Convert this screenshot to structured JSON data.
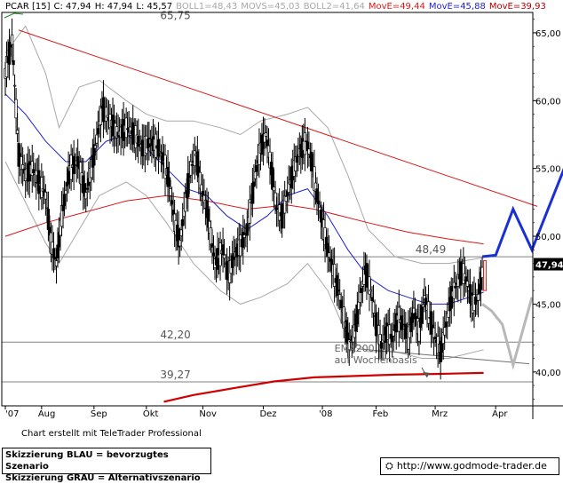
{
  "header": {
    "symbol": "PCAR [15]",
    "close": "C: 47,94",
    "high": "H: 47,94",
    "low": "L: 45,57",
    "boll1": "BOLL1=48,43",
    "movs": "MOVS=45,03",
    "boll2": "BOLL2=41,64",
    "move_red": "MovE=49,44",
    "move_blue": "MovE=45,88",
    "move_darkred": "MovE=39,93"
  },
  "colors": {
    "price": "#000000",
    "bollinger": "#a8a8a8",
    "ema_blue": "#1f1fd0",
    "ema_red": "#d81818",
    "ema200_weekly": "#d00000",
    "trendline": "#d81818",
    "scenario_blue": "#1a2fd6",
    "scenario_gray": "#b8b8b8",
    "level_line": "#808080"
  },
  "chart_data": {
    "type": "candlestick",
    "ylim": [
      37.5,
      66.5
    ],
    "y_ticks": [
      "65,00",
      "60,00",
      "55,00",
      "50,00",
      "45,00",
      "40,00"
    ],
    "y_tick_values": [
      65,
      60,
      55,
      50,
      45,
      40
    ],
    "current_price_label": "47,94",
    "current_price": 47.94,
    "x_labels": [
      "'07",
      "Aug",
      "Sep",
      "Okt",
      "Nov",
      "Dez",
      "'08",
      "Feb",
      "Mrz",
      "Apr"
    ],
    "x_label_positions": [
      0,
      27,
      66,
      105,
      147,
      192,
      236,
      276,
      320,
      365
    ],
    "x_range": [
      0,
      400
    ],
    "close": [
      {
        "t": 0,
        "v": 62.0
      },
      {
        "t": 5,
        "v": 64.5
      },
      {
        "t": 10,
        "v": 56.0
      },
      {
        "t": 15,
        "v": 54.5
      },
      {
        "t": 20,
        "v": 55.0
      },
      {
        "t": 25,
        "v": 54.0
      },
      {
        "t": 30,
        "v": 53.0
      },
      {
        "t": 34,
        "v": 49.5
      },
      {
        "t": 38,
        "v": 48.0
      },
      {
        "t": 42,
        "v": 51.5
      },
      {
        "t": 48,
        "v": 55.0
      },
      {
        "t": 54,
        "v": 55.5
      },
      {
        "t": 60,
        "v": 53.0
      },
      {
        "t": 66,
        "v": 56.0
      },
      {
        "t": 72,
        "v": 59.5
      },
      {
        "t": 78,
        "v": 58.5
      },
      {
        "t": 84,
        "v": 57.5
      },
      {
        "t": 90,
        "v": 58.0
      },
      {
        "t": 96,
        "v": 57.5
      },
      {
        "t": 102,
        "v": 56.5
      },
      {
        "t": 108,
        "v": 57.0
      },
      {
        "t": 114,
        "v": 56.5
      },
      {
        "t": 118,
        "v": 55.5
      },
      {
        "t": 122,
        "v": 54.0
      },
      {
        "t": 126,
        "v": 51.0
      },
      {
        "t": 130,
        "v": 49.5
      },
      {
        "t": 134,
        "v": 52.5
      },
      {
        "t": 138,
        "v": 55.0
      },
      {
        "t": 142,
        "v": 56.0
      },
      {
        "t": 146,
        "v": 53.5
      },
      {
        "t": 150,
        "v": 52.0
      },
      {
        "t": 156,
        "v": 48.0
      },
      {
        "t": 162,
        "v": 49.0
      },
      {
        "t": 166,
        "v": 47.0
      },
      {
        "t": 170,
        "v": 48.5
      },
      {
        "t": 176,
        "v": 49.5
      },
      {
        "t": 180,
        "v": 50.5
      },
      {
        "t": 186,
        "v": 54.5
      },
      {
        "t": 190,
        "v": 56.5
      },
      {
        "t": 194,
        "v": 57.5
      },
      {
        "t": 198,
        "v": 55.0
      },
      {
        "t": 202,
        "v": 52.0
      },
      {
        "t": 206,
        "v": 51.5
      },
      {
        "t": 212,
        "v": 54.0
      },
      {
        "t": 218,
        "v": 56.0
      },
      {
        "t": 224,
        "v": 57.0
      },
      {
        "t": 228,
        "v": 55.5
      },
      {
        "t": 232,
        "v": 53.0
      },
      {
        "t": 236,
        "v": 51.0
      },
      {
        "t": 240,
        "v": 49.0
      },
      {
        "t": 244,
        "v": 47.5
      },
      {
        "t": 248,
        "v": 46.0
      },
      {
        "t": 252,
        "v": 44.0
      },
      {
        "t": 256,
        "v": 42.0
      },
      {
        "t": 260,
        "v": 43.0
      },
      {
        "t": 264,
        "v": 45.5
      },
      {
        "t": 268,
        "v": 47.5
      },
      {
        "t": 272,
        "v": 46.0
      },
      {
        "t": 276,
        "v": 43.5
      },
      {
        "t": 280,
        "v": 42.0
      },
      {
        "t": 284,
        "v": 43.0
      },
      {
        "t": 288,
        "v": 42.5
      },
      {
        "t": 292,
        "v": 44.0
      },
      {
        "t": 296,
        "v": 43.5
      },
      {
        "t": 300,
        "v": 42.5
      },
      {
        "t": 304,
        "v": 44.5
      },
      {
        "t": 308,
        "v": 43.0
      },
      {
        "t": 312,
        "v": 45.5
      },
      {
        "t": 316,
        "v": 44.0
      },
      {
        "t": 320,
        "v": 42.5
      },
      {
        "t": 324,
        "v": 41.5
      },
      {
        "t": 328,
        "v": 43.5
      },
      {
        "t": 332,
        "v": 45.5
      },
      {
        "t": 336,
        "v": 46.5
      },
      {
        "t": 340,
        "v": 47.5
      },
      {
        "t": 344,
        "v": 46.5
      },
      {
        "t": 348,
        "v": 45.0
      },
      {
        "t": 352,
        "v": 45.5
      },
      {
        "t": 356,
        "v": 47.94
      }
    ],
    "bollinger_upper": [
      {
        "t": 0,
        "v": 63.5
      },
      {
        "t": 15,
        "v": 65.5
      },
      {
        "t": 30,
        "v": 62.0
      },
      {
        "t": 40,
        "v": 58.0
      },
      {
        "t": 55,
        "v": 61.0
      },
      {
        "t": 70,
        "v": 61.5
      },
      {
        "t": 90,
        "v": 60.0
      },
      {
        "t": 105,
        "v": 59.0
      },
      {
        "t": 120,
        "v": 58.5
      },
      {
        "t": 140,
        "v": 58.5
      },
      {
        "t": 160,
        "v": 58.0
      },
      {
        "t": 175,
        "v": 57.5
      },
      {
        "t": 190,
        "v": 58.5
      },
      {
        "t": 210,
        "v": 59.0
      },
      {
        "t": 225,
        "v": 59.5
      },
      {
        "t": 240,
        "v": 58.0
      },
      {
        "t": 255,
        "v": 54.5
      },
      {
        "t": 270,
        "v": 50.5
      },
      {
        "t": 290,
        "v": 48.5
      },
      {
        "t": 310,
        "v": 48.0
      },
      {
        "t": 330,
        "v": 48.0
      },
      {
        "t": 356,
        "v": 48.43
      }
    ],
    "bollinger_lower": [
      {
        "t": 0,
        "v": 55.5
      },
      {
        "t": 15,
        "v": 52.5
      },
      {
        "t": 30,
        "v": 49.5
      },
      {
        "t": 40,
        "v": 48.0
      },
      {
        "t": 55,
        "v": 50.5
      },
      {
        "t": 70,
        "v": 53.0
      },
      {
        "t": 90,
        "v": 54.0
      },
      {
        "t": 105,
        "v": 53.0
      },
      {
        "t": 120,
        "v": 51.0
      },
      {
        "t": 140,
        "v": 48.0
      },
      {
        "t": 160,
        "v": 46.0
      },
      {
        "t": 175,
        "v": 45.0
      },
      {
        "t": 190,
        "v": 45.5
      },
      {
        "t": 210,
        "v": 46.5
      },
      {
        "t": 225,
        "v": 48.0
      },
      {
        "t": 240,
        "v": 46.0
      },
      {
        "t": 255,
        "v": 42.5
      },
      {
        "t": 270,
        "v": 41.5
      },
      {
        "t": 290,
        "v": 41.5
      },
      {
        "t": 310,
        "v": 41.0
      },
      {
        "t": 330,
        "v": 41.0
      },
      {
        "t": 356,
        "v": 41.64
      }
    ],
    "ema_blue": [
      {
        "t": 0,
        "v": 60.5
      },
      {
        "t": 15,
        "v": 59.0
      },
      {
        "t": 30,
        "v": 57.0
      },
      {
        "t": 45,
        "v": 55.5
      },
      {
        "t": 60,
        "v": 55.5
      },
      {
        "t": 75,
        "v": 57.0
      },
      {
        "t": 90,
        "v": 57.5
      },
      {
        "t": 105,
        "v": 56.5
      },
      {
        "t": 120,
        "v": 55.0
      },
      {
        "t": 135,
        "v": 53.5
      },
      {
        "t": 150,
        "v": 53.0
      },
      {
        "t": 165,
        "v": 51.5
      },
      {
        "t": 180,
        "v": 50.5
      },
      {
        "t": 195,
        "v": 51.5
      },
      {
        "t": 210,
        "v": 53.0
      },
      {
        "t": 225,
        "v": 53.5
      },
      {
        "t": 240,
        "v": 51.5
      },
      {
        "t": 255,
        "v": 49.0
      },
      {
        "t": 270,
        "v": 47.0
      },
      {
        "t": 285,
        "v": 46.0
      },
      {
        "t": 300,
        "v": 45.5
      },
      {
        "t": 315,
        "v": 45.0
      },
      {
        "t": 330,
        "v": 45.0
      },
      {
        "t": 345,
        "v": 45.5
      },
      {
        "t": 356,
        "v": 45.88
      }
    ],
    "ema_red": [
      {
        "t": 0,
        "v": 50.0
      },
      {
        "t": 30,
        "v": 51.0
      },
      {
        "t": 60,
        "v": 51.8
      },
      {
        "t": 90,
        "v": 52.6
      },
      {
        "t": 120,
        "v": 53.0
      },
      {
        "t": 150,
        "v": 52.6
      },
      {
        "t": 180,
        "v": 52.0
      },
      {
        "t": 210,
        "v": 52.3
      },
      {
        "t": 230,
        "v": 52.0
      },
      {
        "t": 250,
        "v": 51.5
      },
      {
        "t": 270,
        "v": 51.0
      },
      {
        "t": 300,
        "v": 50.3
      },
      {
        "t": 330,
        "v": 49.8
      },
      {
        "t": 356,
        "v": 49.44
      }
    ],
    "ema200_weekly": [
      {
        "t": 118,
        "v": 37.8
      },
      {
        "t": 140,
        "v": 38.3
      },
      {
        "t": 170,
        "v": 38.8
      },
      {
        "t": 200,
        "v": 39.3
      },
      {
        "t": 230,
        "v": 39.6
      },
      {
        "t": 260,
        "v": 39.7
      },
      {
        "t": 290,
        "v": 39.8
      },
      {
        "t": 320,
        "v": 39.85
      },
      {
        "t": 356,
        "v": 39.93
      }
    ],
    "trendline": [
      {
        "t": 10,
        "v": 65.2
      },
      {
        "t": 396,
        "v": 52.2
      }
    ],
    "support_trendline": [
      {
        "t": 262,
        "v": 41.7
      },
      {
        "t": 390,
        "v": 40.6
      }
    ],
    "red_candle": {
      "t": 357,
      "o": 46.0,
      "c": 48.2
    },
    "levels": [
      {
        "value": 65.75,
        "label": "65,75",
        "line": false,
        "label_t": 110
      },
      {
        "value": 48.49,
        "label": "48,49",
        "line": true,
        "label_t": 300
      },
      {
        "value": 42.2,
        "label": "42,20",
        "line": true,
        "label_t": 110
      },
      {
        "value": 39.27,
        "label": "39,27",
        "line": true,
        "label_t": 110
      }
    ],
    "annotation": {
      "line1": "EMA200",
      "line2": "auf Wochenbasis"
    },
    "scenario_blue": [
      {
        "t": 355,
        "v": 48.5
      },
      {
        "t": 365,
        "v": 48.6
      },
      {
        "t": 378,
        "v": 52.0
      },
      {
        "t": 392,
        "v": 49.0
      },
      {
        "t": 420,
        "v": 56.0
      }
    ],
    "scenario_gray": [
      {
        "t": 355,
        "v": 45.0
      },
      {
        "t": 362,
        "v": 44.5
      },
      {
        "t": 370,
        "v": 43.5
      },
      {
        "t": 378,
        "v": 40.5
      },
      {
        "t": 392,
        "v": 45.5
      }
    ]
  },
  "footer": {
    "credit": "Chart erstellt mit TeleTrader Professional",
    "scenario_blue_text": "Skizzierung BLAU = bevorzugtes Szenario",
    "scenario_gray_text": "Skizzierung GRAU = Alternativszenario",
    "url": "http://www.godmode-trader.de"
  }
}
